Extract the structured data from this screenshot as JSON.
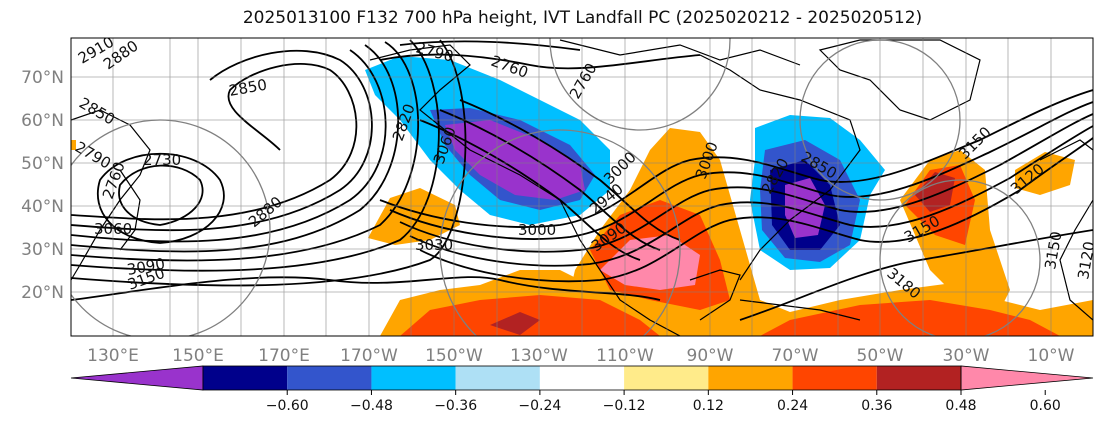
{
  "title": "2025013100 F132 700 hPa height, IVT Landfall PC (2025020212 - 2025020512)",
  "lon_labels": [
    "130°E",
    "150°E",
    "170°E",
    "170°W",
    "150°W",
    "130°W",
    "110°W",
    "90°W",
    "70°W",
    "50°W",
    "30°W",
    "10°W"
  ],
  "lat_labels": [
    "70°N",
    "60°N",
    "50°N",
    "40°N",
    "30°N",
    "20°N"
  ],
  "colorbar": {
    "colors": [
      "#9933cc",
      "#00008b",
      "#3355cc",
      "#00bfff",
      "#aee0f5",
      "#ffffff",
      "#ffeb8a",
      "#ffa500",
      "#ff4500",
      "#b22222",
      "#ff88aa"
    ],
    "tick_labels": [
      "−0.60",
      "−0.48",
      "−0.36",
      "−0.24",
      "−0.12",
      "0.12",
      "0.24",
      "0.36",
      "0.48",
      "0.60"
    ]
  },
  "contour_labels": [
    "2910",
    "2880",
    "2850",
    "2850",
    "2790",
    "2730",
    "2760",
    "3060",
    "3090",
    "3150",
    "2880",
    "2790",
    "2760",
    "2820",
    "3060",
    "3030",
    "3000",
    "2940",
    "2760",
    "3090",
    "3150",
    "3180",
    "3120",
    "3150",
    "3150",
    "3120",
    "2850",
    "2820",
    "3000",
    "3000"
  ],
  "colors": {
    "negative_strong": "#9933cc",
    "negative": "#00bfff",
    "positive": "#ffa500",
    "positive_strong": "#ff88aa",
    "contour": "#000000",
    "gridline": "#808080"
  }
}
